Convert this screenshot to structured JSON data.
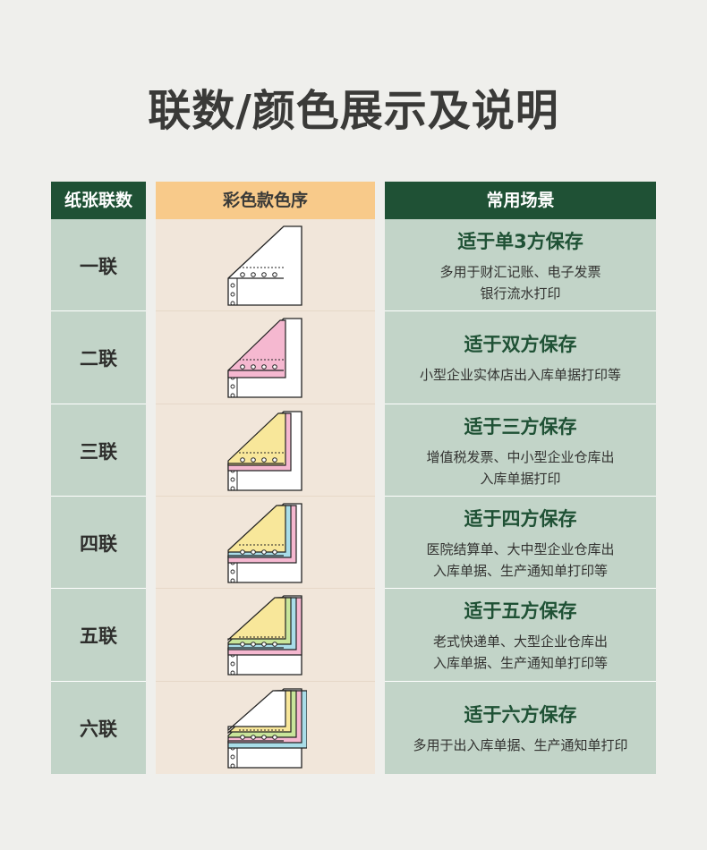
{
  "title": "联数/颜色展示及说明",
  "headers": {
    "count": "纸张联数",
    "colors": "彩色款色序",
    "usage": "常用场景"
  },
  "rows": [
    {
      "name": "一联",
      "usage_title": "适于单3方保存",
      "usage_lines": [
        "多用于财汇记账、电子发票",
        "银行流水打印"
      ],
      "plies": [
        "#ffffff"
      ]
    },
    {
      "name": "二联",
      "usage_title": "适于双方保存",
      "usage_lines": [
        "小型企业实体店出入库单据打印等",
        ""
      ],
      "plies": [
        "#ffffff",
        "#f5b8d0"
      ]
    },
    {
      "name": "三联",
      "usage_title": "适于三方保存",
      "usage_lines": [
        "增值税发票、中小型企业仓库出",
        "入库单据打印"
      ],
      "plies": [
        "#ffffff",
        "#f5b8d0",
        "#f8e79a"
      ]
    },
    {
      "name": "四联",
      "usage_title": "适于四方保存",
      "usage_lines": [
        "医院结算单、大中型企业仓库出",
        "入库单据、生产通知单打印等"
      ],
      "plies": [
        "#ffffff",
        "#f5b8d0",
        "#a9dde8",
        "#f8e79a"
      ]
    },
    {
      "name": "五联",
      "usage_title": "适于五方保存",
      "usage_lines": [
        "老式快递单、大型企业仓库出",
        "入库单据、生产通知单打印等"
      ],
      "plies": [
        "#ffffff",
        "#f5b8d0",
        "#a9dde8",
        "#c8e59a",
        "#f8e79a"
      ]
    },
    {
      "name": "六联",
      "usage_title": "适于六方保存",
      "usage_lines": [
        "多用于出入库单据、生产通知单打印",
        ""
      ],
      "plies": [
        "#ffffff",
        "#a9dde8",
        "#f5b8d0",
        "#c8e59a",
        "#f8e79a",
        "#ffffff"
      ]
    }
  ]
}
